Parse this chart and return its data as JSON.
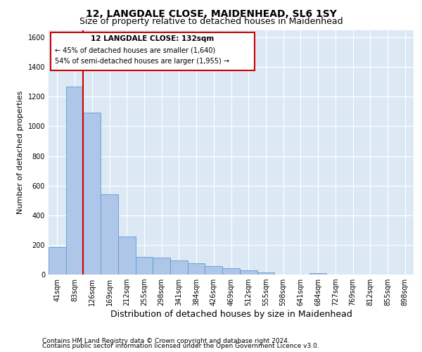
{
  "title1": "12, LANGDALE CLOSE, MAIDENHEAD, SL6 1SY",
  "title2": "Size of property relative to detached houses in Maidenhead",
  "xlabel": "Distribution of detached houses by size in Maidenhead",
  "ylabel": "Number of detached properties",
  "footer1": "Contains HM Land Registry data © Crown copyright and database right 2024.",
  "footer2": "Contains public sector information licensed under the Open Government Licence v3.0.",
  "annotation_line1": "12 LANGDALE CLOSE: 132sqm",
  "annotation_line2": "← 45% of detached houses are smaller (1,640)",
  "annotation_line3": "54% of semi-detached houses are larger (1,955) →",
  "bar_color": "#aec6e8",
  "bar_edge_color": "#5b9bd5",
  "vline_color": "#cc0000",
  "bg_color": "#dce9f5",
  "categories": [
    "41sqm",
    "83sqm",
    "126sqm",
    "169sqm",
    "212sqm",
    "255sqm",
    "298sqm",
    "341sqm",
    "384sqm",
    "426sqm",
    "469sqm",
    "512sqm",
    "555sqm",
    "598sqm",
    "641sqm",
    "684sqm",
    "727sqm",
    "769sqm",
    "812sqm",
    "855sqm",
    "898sqm"
  ],
  "values": [
    185,
    1270,
    1090,
    540,
    255,
    120,
    115,
    95,
    75,
    55,
    45,
    30,
    15,
    0,
    0,
    10,
    0,
    0,
    0,
    0,
    0
  ],
  "ylim": [
    0,
    1650
  ],
  "yticks": [
    0,
    200,
    400,
    600,
    800,
    1000,
    1200,
    1400,
    1600
  ],
  "vline_x": 1.5,
  "title1_fontsize": 10,
  "title2_fontsize": 9,
  "xlabel_fontsize": 9,
  "ylabel_fontsize": 8,
  "tick_fontsize": 7,
  "annot_fontsize1": 7.5,
  "annot_fontsize2": 7,
  "footer_fontsize": 6.5
}
